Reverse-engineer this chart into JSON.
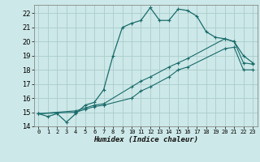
{
  "xlabel": "Humidex (Indice chaleur)",
  "bg_color": "#cde8e8",
  "grid_color": "#aacccc",
  "line_color": "#1a6b6b",
  "xlim": [
    -0.5,
    23.5
  ],
  "ylim": [
    14,
    22.6
  ],
  "xticks": [
    0,
    1,
    2,
    3,
    4,
    5,
    6,
    7,
    8,
    9,
    10,
    11,
    12,
    13,
    14,
    15,
    16,
    17,
    18,
    19,
    20,
    21,
    22,
    23
  ],
  "yticks": [
    14,
    15,
    16,
    17,
    18,
    19,
    20,
    21,
    22
  ],
  "line1_x": [
    0,
    1,
    2,
    3,
    4,
    5,
    6,
    7,
    8,
    9,
    10,
    11,
    12,
    13,
    14,
    15,
    16,
    17,
    18,
    19,
    20,
    21,
    22,
    23
  ],
  "line1_y": [
    14.9,
    14.7,
    14.9,
    14.3,
    14.9,
    15.5,
    15.7,
    16.6,
    19.0,
    21.0,
    21.3,
    21.5,
    22.4,
    21.5,
    21.5,
    22.3,
    22.2,
    21.8,
    20.7,
    20.3,
    20.2,
    20.0,
    19.0,
    18.5
  ],
  "line2_x": [
    0,
    4,
    5,
    6,
    7,
    10,
    11,
    12,
    14,
    15,
    16,
    20,
    21,
    22,
    23
  ],
  "line2_y": [
    14.9,
    15.1,
    15.3,
    15.5,
    15.6,
    16.8,
    17.2,
    17.5,
    18.2,
    18.5,
    18.8,
    20.2,
    20.0,
    18.5,
    18.4
  ],
  "line3_x": [
    0,
    4,
    5,
    6,
    7,
    10,
    11,
    12,
    14,
    15,
    16,
    20,
    21,
    22,
    23
  ],
  "line3_y": [
    14.9,
    15.0,
    15.2,
    15.4,
    15.5,
    16.0,
    16.5,
    16.8,
    17.5,
    18.0,
    18.2,
    19.5,
    19.6,
    18.0,
    18.0
  ]
}
